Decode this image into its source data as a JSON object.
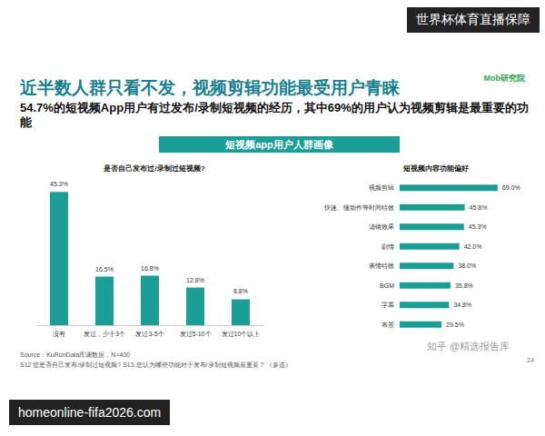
{
  "header": {
    "title": "近半数人群只看不发，视频剪辑功能最受用户青睐",
    "subtitle": "54.7%的短视频App用户有过发布/录制短视频的经历，其中69%的用户认为视频剪辑是最重要的功能",
    "logo": "Mob研究院"
  },
  "banner": "短视频app用户人群画像",
  "footer": {
    "source": "Source：KuRunData库调数据，N=400",
    "questions": "S12 您是否自己发布/录制过短视频? S13.您认为哪些功能对于发布/录制短视频最重要？ （多选）",
    "page": "24"
  },
  "overlays": {
    "top_right": "世界杯体育直播保障",
    "bottom_left": "homeonline-fifa2026.com",
    "zhihu": "知乎 @精选报告库"
  },
  "chart_data": [
    {
      "type": "bar",
      "title": "是否自己发布过/录制过短视频?",
      "categories": [
        "没有",
        "发过，少于3个",
        "发过3-5个",
        "发过5-10个",
        "发过10个以上"
      ],
      "values": [
        45.3,
        16.5,
        16.8,
        12.8,
        8.8
      ],
      "value_labels": [
        "45.3%",
        "16.5%",
        "16.8%",
        "12.8%",
        "8.8%"
      ],
      "color": "#1a9e96",
      "ylim": [
        0,
        50
      ],
      "data_labels": true,
      "tick_labels": "x",
      "grid": false
    },
    {
      "type": "bar",
      "orientation": "horizontal",
      "title": "短视频内容功能偏好",
      "categories": [
        "视频剪辑",
        "快速、慢动作等时间特效",
        "滤镜效果",
        "剧情",
        "表情特效",
        "BGM",
        "字幕",
        "布景"
      ],
      "values": [
        69.0,
        45.8,
        45.3,
        42.0,
        38.0,
        35.8,
        34.8,
        29.5
      ],
      "value_labels": [
        "69.0%",
        "45.8%",
        "45.3%",
        "42.0%",
        "38.0%",
        "35.8%",
        "34.8%",
        "29.5%"
      ],
      "color": "#1a9e96",
      "xlim": [
        0,
        80
      ],
      "data_labels": true,
      "tick_labels": "y",
      "grid": false
    }
  ]
}
